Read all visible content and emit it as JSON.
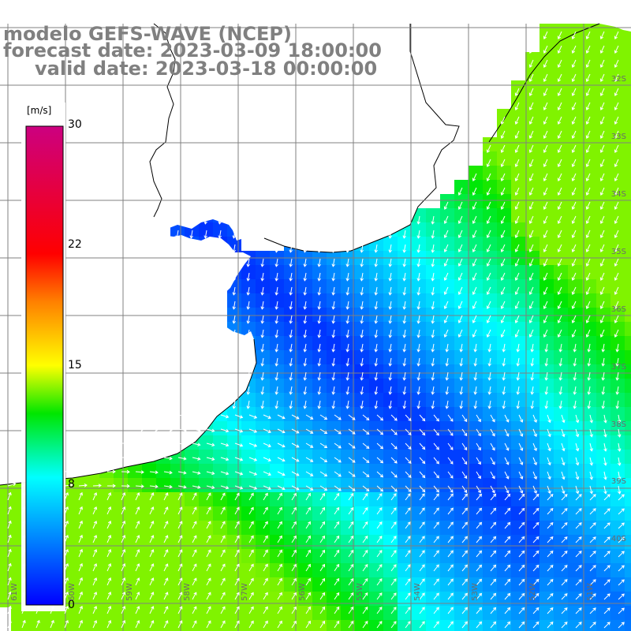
{
  "title": {
    "model": "modelo GEFS-WAVE (NCEP)",
    "forecast": "forecast date: 2023-03-09 18:00:00",
    "valid": "valid date: 2023-03-18 00:00:00"
  },
  "colorbar": {
    "unit": "[m/s]",
    "ticks": [
      "30",
      "22",
      "15",
      "8",
      "0"
    ],
    "range": [
      0,
      30
    ],
    "colors": [
      "#0000ff",
      "#00ffff",
      "#00e600",
      "#ffff00",
      "#ff8000",
      "#ff0000",
      "#cc0080"
    ]
  },
  "map": {
    "extent_lon": [
      -61,
      -50
    ],
    "extent_lat": [
      -41,
      -30
    ],
    "lat_labels": [
      "32S",
      "33S",
      "34S",
      "35S",
      "36S",
      "37S",
      "38S",
      "39S",
      "40S"
    ],
    "lon_labels": [
      "61W",
      "60W",
      "59W",
      "58W",
      "57W",
      "56W",
      "55W",
      "54W",
      "53W",
      "52W",
      "51W"
    ],
    "land_color": "#ffffff",
    "grid_color": "#808080",
    "arrow_color": "#ffffff"
  }
}
